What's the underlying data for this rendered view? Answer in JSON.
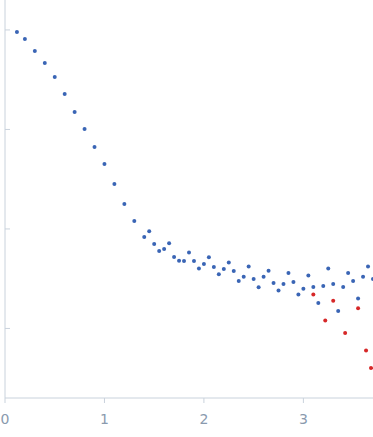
{
  "chart_data": {
    "type": "scatter",
    "log": "y",
    "tick_labels": "x",
    "grid": false,
    "xlim": [
      0,
      3.7
    ],
    "xticks": [
      0,
      1,
      2,
      3
    ],
    "ylim": [
      0.0002,
      2
    ],
    "yticks": [
      0.001,
      0.01,
      0.1,
      1
    ],
    "series": [
      {
        "color": "#3a65b5",
        "marker": "circle",
        "x": [
          0.12,
          0.2,
          0.3,
          0.4,
          0.5,
          0.6,
          0.7,
          0.8,
          0.9,
          1.0,
          1.1,
          1.2,
          1.3,
          1.4,
          1.45,
          1.5,
          1.55,
          1.6,
          1.65,
          1.7,
          1.75,
          1.8,
          1.85,
          1.9,
          1.95,
          2.0,
          2.05,
          2.1,
          2.15,
          2.2,
          2.25,
          2.3,
          2.35,
          2.4,
          2.45,
          2.5,
          2.55,
          2.6,
          2.65,
          2.7,
          2.75,
          2.8,
          2.85,
          2.9,
          2.95,
          3.0,
          3.05,
          3.1,
          3.15,
          3.2,
          3.25,
          3.3,
          3.35,
          3.4,
          3.45,
          3.5,
          3.55,
          3.6,
          3.65,
          3.7
        ],
        "values": [
          0.955,
          0.812,
          0.615,
          0.466,
          0.337,
          0.227,
          0.15,
          0.101,
          0.0667,
          0.045,
          0.0283,
          0.0178,
          0.012,
          0.00832,
          0.0095,
          0.00706,
          0.006,
          0.0063,
          0.0072,
          0.00523,
          0.0048,
          0.00477,
          0.0058,
          0.00477,
          0.004,
          0.00445,
          0.0052,
          0.00415,
          0.0035,
          0.00396,
          0.0046,
          0.00378,
          0.003,
          0.0033,
          0.0042,
          0.00314,
          0.0026,
          0.0033,
          0.0038,
          0.00287,
          0.0024,
          0.0028,
          0.0036,
          0.00293,
          0.0022,
          0.0025,
          0.0034,
          0.00261,
          0.0018,
          0.00267,
          0.004,
          0.0028,
          0.0015,
          0.00261,
          0.0036,
          0.003,
          0.002,
          0.0033,
          0.0042,
          0.00314
        ]
      },
      {
        "color": "#d62728",
        "marker": "circle",
        "x": [
          3.1,
          3.22,
          3.3,
          3.42,
          3.55,
          3.63,
          3.68
        ],
        "values": [
          0.0022,
          0.0012,
          0.0019,
          0.0009,
          0.0016,
          0.0006,
          0.0004
        ]
      }
    ]
  }
}
